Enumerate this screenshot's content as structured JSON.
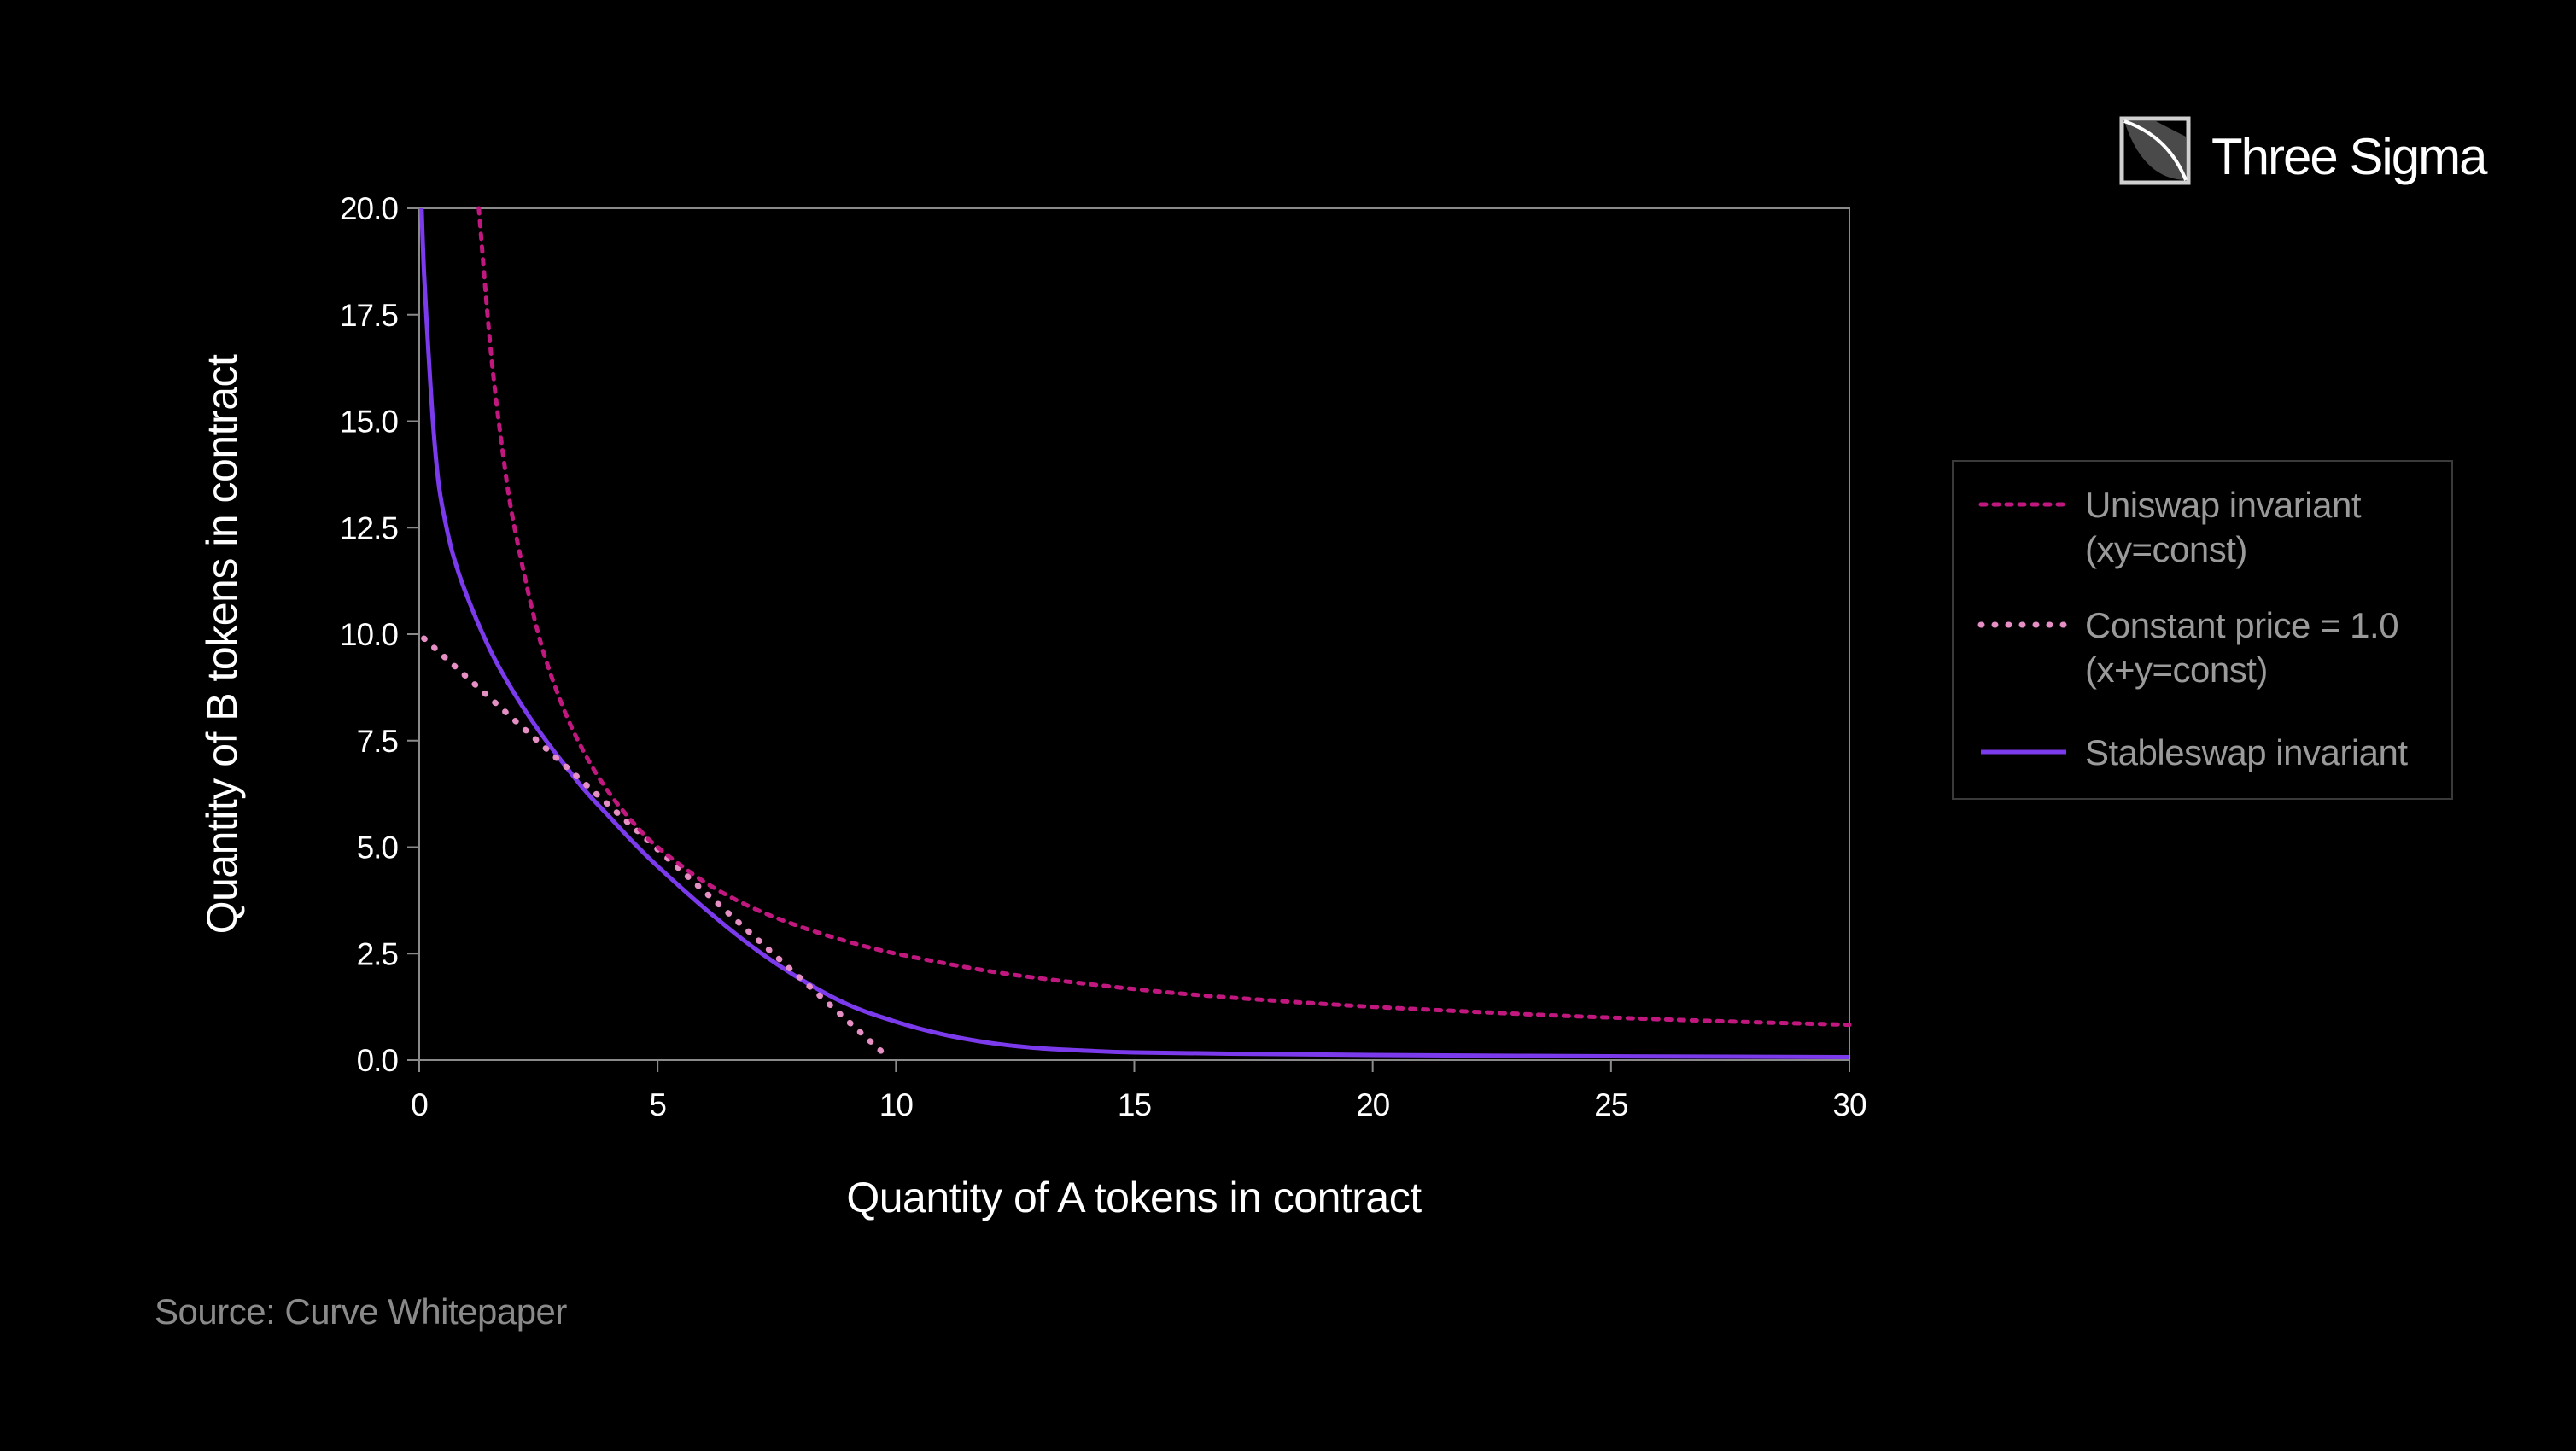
{
  "brand": {
    "name": "Three Sigma"
  },
  "source": "Source: Curve Whitepaper",
  "colors": {
    "background": "#000000",
    "uniswap": "#c0187e",
    "constant_price": "#e58fc4",
    "stableswap": "#7c3aed",
    "axis": "#8a8a8a",
    "legend_text": "#9a9a9a"
  },
  "chart_data": {
    "type": "line",
    "xlabel": "Quantity of A tokens in contract",
    "ylabel": "Quantity of B tokens in contract",
    "xlim": [
      0,
      30
    ],
    "ylim": [
      0,
      20
    ],
    "x_ticks": [
      0,
      5,
      10,
      15,
      20,
      25,
      30
    ],
    "x_tick_labels": [
      "0",
      "5",
      "10",
      "15",
      "20",
      "25",
      "30"
    ],
    "y_ticks": [
      0,
      2.5,
      5,
      7.5,
      10,
      12.5,
      15,
      17.5,
      20
    ],
    "y_tick_labels": [
      "0.0",
      "2.5",
      "5.0",
      "7.5",
      "10.0",
      "12.5",
      "15.0",
      "17.5",
      "20.0"
    ],
    "grid": false,
    "legend_position": "right",
    "series": [
      {
        "name": "Uniswap invariant (xy=const)",
        "legend_lines": [
          "Uniswap invariant",
          "(xy=const)"
        ],
        "style": "dotted",
        "x": [
          1.25,
          1.5,
          1.75,
          2,
          2.5,
          3,
          3.5,
          4,
          4.5,
          5,
          6,
          7,
          8,
          9,
          10,
          12,
          14,
          16,
          18,
          20,
          22,
          24,
          26,
          28,
          30
        ],
        "y": [
          20,
          16.67,
          14.29,
          12.5,
          10,
          8.33,
          7.14,
          6.25,
          5.56,
          5,
          4.17,
          3.57,
          3.13,
          2.78,
          2.5,
          2.08,
          1.79,
          1.56,
          1.39,
          1.25,
          1.14,
          1.04,
          0.96,
          0.89,
          0.83
        ]
      },
      {
        "name": "Constant price = 1.0 (x+y=const)",
        "legend_lines": [
          "Constant price = 1.0",
          "(x+y=const)"
        ],
        "style": "dotted-thick",
        "x": [
          0.1,
          9.8
        ],
        "y": [
          9.9,
          0.1
        ]
      },
      {
        "name": "Stableswap invariant",
        "legend_lines": [
          "Stableswap invariant"
        ],
        "style": "solid",
        "x": [
          0.05,
          0.1,
          0.2,
          0.3,
          0.4,
          0.5,
          0.7,
          1,
          1.5,
          2,
          2.5,
          3,
          3.5,
          4,
          4.5,
          5,
          6,
          7,
          8,
          9,
          10,
          11,
          12,
          13,
          14,
          15,
          17,
          20,
          25,
          30
        ],
        "y": [
          20,
          18.5,
          16.5,
          14.8,
          13.6,
          12.9,
          11.9,
          10.9,
          9.6,
          8.6,
          7.75,
          7.0,
          6.3,
          5.7,
          5.1,
          4.55,
          3.55,
          2.65,
          1.9,
          1.3,
          0.9,
          0.6,
          0.4,
          0.28,
          0.22,
          0.18,
          0.15,
          0.12,
          0.09,
          0.07
        ]
      }
    ]
  }
}
